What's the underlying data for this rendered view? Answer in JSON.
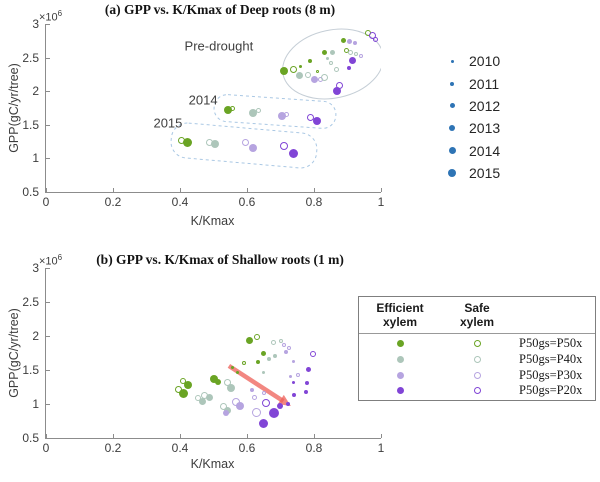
{
  "colors": {
    "green": "#6aa424",
    "pale": "#adc6ba",
    "lavender": "#b6a4e0",
    "purple": "#8145d6",
    "year_blue": "#2e74b5",
    "arrow_red": "#ee5f58",
    "outline_blue": "#aac8e4",
    "outline_gray": "#c5ced6",
    "axis_gray": "#8c8c8c"
  },
  "year_legend": {
    "items": [
      {
        "label": "2010",
        "dot": 3
      },
      {
        "label": "2011",
        "dot": 4
      },
      {
        "label": "2012",
        "dot": 5
      },
      {
        "label": "2013",
        "dot": 6
      },
      {
        "label": "2014",
        "dot": 7
      },
      {
        "label": "2015",
        "dot": 8
      }
    ]
  },
  "xylem_legend": {
    "efficient_header": "Efficient\nxylem",
    "safe_header": "Safe\nxylem",
    "rows": [
      {
        "label": "P50gs=P50x",
        "color": "green"
      },
      {
        "label": "P50gs=P40x",
        "color": "pale"
      },
      {
        "label": "P50gs=P30x",
        "color": "lavender"
      },
      {
        "label": "P50gs=P20x",
        "color": "purple"
      }
    ]
  },
  "chart_data": [
    {
      "id": "a",
      "type": "scatter",
      "title": "(a) GPP vs. K/Kmax of Deep roots (8 m)",
      "xlabel": "K/Kmax",
      "ylabel": "GPP(gC/yr/tree)",
      "y_exponent_prefix": "×10",
      "y_exponent_power": "6",
      "y_unit_scale": 1000000,
      "xlim": [
        0,
        1
      ],
      "ylim": [
        0.5,
        3
      ],
      "xticks": [
        "0",
        "0.2",
        "0.4",
        "0.6",
        "0.8",
        "1"
      ],
      "yticks": [
        "0.5",
        "1",
        "1.5",
        "2",
        "2.5",
        "3"
      ],
      "grid": false,
      "points_format": [
        "x",
        "y_millions",
        "color_key",
        "filled",
        "diameter_px"
      ],
      "points": [
        [
          0.71,
          2.3,
          "green",
          1,
          8
        ],
        [
          0.74,
          2.32,
          "green",
          0,
          7
        ],
        [
          0.758,
          2.24,
          "pale",
          1,
          7
        ],
        [
          0.782,
          2.24,
          "pale",
          0,
          6
        ],
        [
          0.788,
          2.45,
          "green",
          1,
          4
        ],
        [
          0.8,
          2.18,
          "lavender",
          1,
          7
        ],
        [
          0.818,
          2.17,
          "lavender",
          0,
          5
        ],
        [
          0.83,
          2.58,
          "green",
          1,
          5
        ],
        [
          0.854,
          2.58,
          "pale",
          1,
          5
        ],
        [
          0.851,
          2.42,
          "pale",
          0,
          4
        ],
        [
          0.866,
          2.32,
          "pale",
          0,
          5
        ],
        [
          0.83,
          2.21,
          "pale",
          0,
          7
        ],
        [
          0.896,
          2.6,
          "green",
          0,
          5
        ],
        [
          0.91,
          2.57,
          "pale",
          0,
          5
        ],
        [
          0.925,
          2.55,
          "pale",
          0,
          4
        ],
        [
          0.94,
          2.52,
          "lavender",
          0,
          4
        ],
        [
          0.887,
          2.76,
          "green",
          1,
          5
        ],
        [
          0.907,
          2.74,
          "lavender",
          1,
          5
        ],
        [
          0.922,
          2.71,
          "lavender",
          1,
          4
        ],
        [
          0.962,
          2.86,
          "green",
          0,
          6
        ],
        [
          0.975,
          2.83,
          "purple",
          0,
          7
        ],
        [
          0.984,
          2.77,
          "purple",
          0,
          5
        ],
        [
          0.916,
          2.46,
          "purple",
          1,
          7
        ],
        [
          0.904,
          2.34,
          "purple",
          1,
          4
        ],
        [
          0.761,
          2.37,
          "green",
          1,
          3
        ],
        [
          0.875,
          2.09,
          "purple",
          0,
          7
        ],
        [
          0.869,
          2.01,
          "purple",
          1,
          8
        ],
        [
          0.839,
          2.49,
          "pale",
          1,
          3
        ],
        [
          0.809,
          2.3,
          "green",
          0,
          3
        ],
        [
          0.543,
          1.72,
          "green",
          1,
          8
        ],
        [
          0.558,
          1.75,
          "green",
          0,
          5
        ],
        [
          0.618,
          1.68,
          "pale",
          1,
          8
        ],
        [
          0.633,
          1.71,
          "pale",
          0,
          5
        ],
        [
          0.704,
          1.63,
          "lavender",
          1,
          8
        ],
        [
          0.719,
          1.66,
          "lavender",
          0,
          5
        ],
        [
          0.791,
          1.61,
          "purple",
          0,
          7
        ],
        [
          0.809,
          1.55,
          "purple",
          1,
          8
        ],
        [
          0.403,
          1.27,
          "green",
          0,
          7
        ],
        [
          0.421,
          1.23,
          "green",
          1,
          9
        ],
        [
          0.487,
          1.24,
          "pale",
          0,
          7
        ],
        [
          0.504,
          1.21,
          "pale",
          1,
          8
        ],
        [
          0.597,
          1.23,
          "lavender",
          0,
          7
        ],
        [
          0.618,
          1.15,
          "lavender",
          1,
          8
        ],
        [
          0.71,
          1.18,
          "purple",
          0,
          8
        ],
        [
          0.74,
          1.08,
          "purple",
          1,
          9
        ]
      ],
      "annotations": [
        {
          "text": "Pre-drought",
          "x": 0.516,
          "y": 2.67
        },
        {
          "text": "2014",
          "x": 0.469,
          "y": 1.87
        },
        {
          "text": "2015",
          "x": 0.364,
          "y": 1.53
        }
      ]
    },
    {
      "id": "b",
      "type": "scatter",
      "title": "(b) GPP vs. K/Kmax of Shallow roots (1 m)",
      "xlabel": "K/Kmax",
      "ylabel": "GPP(gC/yr/tree)",
      "y_exponent_prefix": "×10",
      "y_exponent_power": "6",
      "y_unit_scale": 1000000,
      "xlim": [
        0,
        1
      ],
      "ylim": [
        0.5,
        3
      ],
      "xticks": [
        "0",
        "0.2",
        "0.4",
        "0.6",
        "0.8",
        "1"
      ],
      "yticks": [
        "0.5",
        "1",
        "1.5",
        "2",
        "2.5",
        "3"
      ],
      "grid": false,
      "points_format": [
        "x",
        "y_millions",
        "color_key",
        "filled",
        "diameter_px"
      ],
      "points": [
        [
          0.409,
          1.34,
          "green",
          0,
          6
        ],
        [
          0.424,
          1.28,
          "green",
          1,
          8
        ],
        [
          0.397,
          1.21,
          "green",
          0,
          7
        ],
        [
          0.409,
          1.15,
          "green",
          1,
          9
        ],
        [
          0.501,
          1.37,
          "green",
          1,
          8
        ],
        [
          0.513,
          1.32,
          "green",
          1,
          6
        ],
        [
          0.606,
          1.93,
          "green",
          1,
          7
        ],
        [
          0.63,
          1.99,
          "green",
          0,
          6
        ],
        [
          0.648,
          1.75,
          "green",
          1,
          5
        ],
        [
          0.633,
          1.62,
          "green",
          1,
          4
        ],
        [
          0.591,
          1.6,
          "green",
          0,
          4
        ],
        [
          0.558,
          1.53,
          "green",
          1,
          3
        ],
        [
          0.573,
          1.47,
          "green",
          1,
          3
        ],
        [
          0.472,
          1.13,
          "pale",
          0,
          7
        ],
        [
          0.487,
          1.09,
          "pale",
          1,
          7
        ],
        [
          0.454,
          1.09,
          "pale",
          0,
          6
        ],
        [
          0.466,
          1.03,
          "pale",
          1,
          7
        ],
        [
          0.543,
          1.31,
          "pale",
          0,
          7
        ],
        [
          0.552,
          1.24,
          "pale",
          1,
          8
        ],
        [
          0.531,
          0.96,
          "pale",
          0,
          7
        ],
        [
          0.543,
          0.9,
          "pale",
          1,
          7
        ],
        [
          0.666,
          1.66,
          "pale",
          1,
          4
        ],
        [
          0.684,
          1.71,
          "pale",
          1,
          4
        ],
        [
          0.678,
          1.9,
          "pale",
          0,
          5
        ],
        [
          0.701,
          1.93,
          "pale",
          0,
          4
        ],
        [
          0.648,
          1.47,
          "pale",
          1,
          3
        ],
        [
          0.567,
          1.03,
          "lavender",
          0,
          8
        ],
        [
          0.579,
          0.97,
          "lavender",
          1,
          8
        ],
        [
          0.627,
          0.87,
          "lavender",
          0,
          9
        ],
        [
          0.615,
          1.21,
          "lavender",
          1,
          4
        ],
        [
          0.621,
          1.1,
          "lavender",
          0,
          5
        ],
        [
          0.716,
          1.76,
          "lavender",
          1,
          4
        ],
        [
          0.725,
          1.82,
          "lavender",
          0,
          4
        ],
        [
          0.74,
          1.62,
          "lavender",
          1,
          3
        ],
        [
          0.71,
          1.87,
          "lavender",
          0,
          4
        ],
        [
          0.731,
          1.41,
          "lavender",
          1,
          3
        ],
        [
          0.752,
          1.43,
          "lavender",
          0,
          4
        ],
        [
          0.537,
          0.87,
          "lavender",
          1,
          6
        ],
        [
          0.651,
          1.16,
          "lavender",
          0,
          4
        ],
        [
          0.657,
          1.01,
          "purple",
          0,
          8
        ],
        [
          0.681,
          0.87,
          "purple",
          1,
          10
        ],
        [
          0.699,
          0.97,
          "purple",
          1,
          6
        ],
        [
          0.648,
          0.71,
          "purple",
          1,
          9
        ],
        [
          0.785,
          1.51,
          "purple",
          1,
          5
        ],
        [
          0.797,
          1.74,
          "purple",
          0,
          6
        ],
        [
          0.776,
          1.18,
          "purple",
          1,
          4
        ],
        [
          0.74,
          1.31,
          "purple",
          1,
          3
        ],
        [
          0.779,
          1.31,
          "purple",
          1,
          4
        ],
        [
          0.722,
          1.0,
          "purple",
          1,
          4
        ],
        [
          0.74,
          1.13,
          "purple",
          1,
          4
        ]
      ],
      "annotations": [],
      "arrow": {
        "x1": 0.546,
        "y1": 1.56,
        "x2": 0.731,
        "y2": 0.97
      }
    }
  ]
}
